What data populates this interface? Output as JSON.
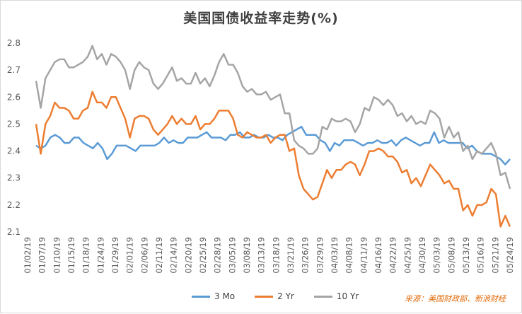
{
  "chart_data": {
    "type": "line",
    "title": "美国国债收益率走势(%)",
    "ylim": [
      2.1,
      2.8
    ],
    "yticks": [
      "2.8",
      "2.7",
      "2.6",
      "2.5",
      "2.4",
      "2.3",
      "2.2",
      "2.1"
    ],
    "ytick_values": [
      2.8,
      2.7,
      2.6,
      2.5,
      2.4,
      2.3,
      2.2,
      2.1
    ],
    "x_tick_labels": [
      "01/02/19",
      "01/07/19",
      "01/10/19",
      "01/15/19",
      "01/18/19",
      "01/24/19",
      "01/29/19",
      "02/01/19",
      "02/06/19",
      "02/11/19",
      "02/14/19",
      "02/20/19",
      "02/25/19",
      "02/28/19",
      "03/05/19",
      "03/08/19",
      "03/13/19",
      "03/18/19",
      "03/21/19",
      "03/26/19",
      "03/29/19",
      "04/03/19",
      "04/08/19",
      "04/11/19",
      "04/16/19",
      "04/22/19",
      "04/25/19",
      "04/30/19",
      "05/03/19",
      "05/08/19",
      "05/13/19",
      "05/16/19",
      "05/21/19",
      "05/24/19"
    ],
    "series": [
      {
        "name": "3 Mo",
        "color": "#5b9bd5",
        "values": [
          2.42,
          2.41,
          2.42,
          2.45,
          2.46,
          2.45,
          2.43,
          2.43,
          2.45,
          2.45,
          2.43,
          2.42,
          2.41,
          2.43,
          2.41,
          2.37,
          2.39,
          2.42,
          2.42,
          2.42,
          2.41,
          2.4,
          2.42,
          2.42,
          2.42,
          2.42,
          2.43,
          2.45,
          2.43,
          2.44,
          2.43,
          2.43,
          2.45,
          2.45,
          2.45,
          2.46,
          2.47,
          2.45,
          2.45,
          2.45,
          2.44,
          2.46,
          2.46,
          2.47,
          2.45,
          2.45,
          2.46,
          2.45,
          2.45,
          2.46,
          2.45,
          2.45,
          2.44,
          2.46,
          2.47,
          2.48,
          2.49,
          2.46,
          2.46,
          2.46,
          2.44,
          2.43,
          2.4,
          2.43,
          2.42,
          2.44,
          2.44,
          2.44,
          2.43,
          2.42,
          2.43,
          2.43,
          2.44,
          2.43,
          2.43,
          2.44,
          2.42,
          2.44,
          2.45,
          2.44,
          2.43,
          2.42,
          2.43,
          2.43,
          2.47,
          2.43,
          2.44,
          2.43,
          2.43,
          2.43,
          2.43,
          2.41,
          2.42,
          2.4,
          2.39,
          2.39,
          2.39,
          2.38,
          2.37,
          2.35,
          2.37
        ]
      },
      {
        "name": "2 Yr",
        "color": "#ed7d31",
        "values": [
          2.5,
          2.39,
          2.5,
          2.53,
          2.58,
          2.56,
          2.56,
          2.55,
          2.52,
          2.52,
          2.55,
          2.56,
          2.62,
          2.58,
          2.58,
          2.56,
          2.6,
          2.6,
          2.56,
          2.52,
          2.45,
          2.52,
          2.53,
          2.53,
          2.52,
          2.48,
          2.46,
          2.48,
          2.5,
          2.53,
          2.5,
          2.52,
          2.5,
          2.5,
          2.53,
          2.48,
          2.5,
          2.5,
          2.52,
          2.55,
          2.55,
          2.55,
          2.52,
          2.46,
          2.45,
          2.47,
          2.46,
          2.45,
          2.45,
          2.46,
          2.43,
          2.45,
          2.46,
          2.46,
          2.4,
          2.41,
          2.31,
          2.26,
          2.24,
          2.22,
          2.23,
          2.28,
          2.33,
          2.3,
          2.33,
          2.33,
          2.35,
          2.36,
          2.35,
          2.31,
          2.35,
          2.4,
          2.4,
          2.41,
          2.4,
          2.38,
          2.38,
          2.36,
          2.32,
          2.33,
          2.28,
          2.3,
          2.27,
          2.31,
          2.35,
          2.33,
          2.31,
          2.28,
          2.29,
          2.26,
          2.26,
          2.18,
          2.2,
          2.16,
          2.2,
          2.2,
          2.21,
          2.26,
          2.24,
          2.12,
          2.16,
          2.12
        ]
      },
      {
        "name": "10 Yr",
        "color": "#a5a5a5",
        "values": [
          2.66,
          2.56,
          2.67,
          2.7,
          2.73,
          2.74,
          2.74,
          2.71,
          2.71,
          2.72,
          2.73,
          2.75,
          2.79,
          2.74,
          2.76,
          2.72,
          2.76,
          2.75,
          2.73,
          2.7,
          2.63,
          2.7,
          2.73,
          2.71,
          2.7,
          2.65,
          2.63,
          2.65,
          2.68,
          2.71,
          2.66,
          2.67,
          2.65,
          2.65,
          2.69,
          2.65,
          2.67,
          2.64,
          2.68,
          2.73,
          2.76,
          2.72,
          2.72,
          2.69,
          2.64,
          2.62,
          2.63,
          2.61,
          2.61,
          2.62,
          2.59,
          2.6,
          2.61,
          2.54,
          2.54,
          2.44,
          2.42,
          2.41,
          2.39,
          2.39,
          2.41,
          2.49,
          2.48,
          2.52,
          2.51,
          2.51,
          2.52,
          2.51,
          2.47,
          2.5,
          2.56,
          2.55,
          2.6,
          2.59,
          2.57,
          2.59,
          2.57,
          2.53,
          2.54,
          2.51,
          2.53,
          2.5,
          2.51,
          2.5,
          2.55,
          2.54,
          2.52,
          2.45,
          2.49,
          2.45,
          2.47,
          2.4,
          2.42,
          2.37,
          2.4,
          2.39,
          2.41,
          2.43,
          2.39,
          2.31,
          2.32,
          2.26
        ]
      }
    ]
  },
  "source": "来源：美国财政部、新浪财经"
}
